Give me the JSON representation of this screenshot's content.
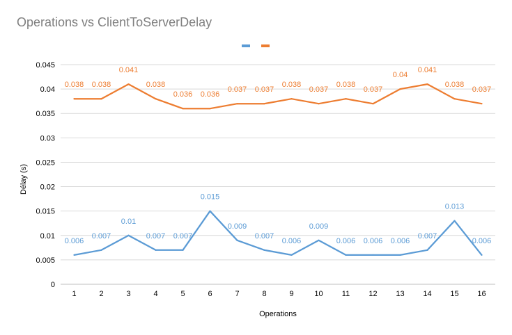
{
  "chart_data": {
    "type": "line",
    "title": "Operations vs ClientToServerDelay",
    "xlabel": "Operations",
    "ylabel": "Delay (s)",
    "ylabel_shown": "Délay (s)",
    "categories": [
      "1",
      "2",
      "3",
      "4",
      "5",
      "6",
      "7",
      "8",
      "9",
      "10",
      "11",
      "12",
      "13",
      "14",
      "15",
      "16"
    ],
    "ylim": [
      0,
      0.045
    ],
    "yticks": [
      "0",
      "0.005",
      "0.01",
      "0.015",
      "0.02",
      "0.025",
      "0.03",
      "0.035",
      "0.04",
      "0.045"
    ],
    "grid": true,
    "legend": "top-center",
    "series": [
      {
        "color": "#5b9bd5",
        "values": [
          0.006,
          0.007,
          0.01,
          0.007,
          0.007,
          0.015,
          0.009,
          0.007,
          0.006,
          0.009,
          0.006,
          0.006,
          0.006,
          0.007,
          0.013,
          0.006
        ],
        "labels": [
          "0.006",
          "0.007",
          "0.01",
          "0.007",
          "0.007",
          "0.015",
          "0.009",
          "0.007",
          "0.006",
          "0.009",
          "0.006",
          "0.006",
          "0.006",
          "0.007",
          "0.013",
          "0.006"
        ]
      },
      {
        "color": "#ed7d31",
        "values": [
          0.038,
          0.038,
          0.041,
          0.038,
          0.036,
          0.036,
          0.037,
          0.037,
          0.038,
          0.037,
          0.038,
          0.037,
          0.04,
          0.041,
          0.038,
          0.037
        ],
        "labels": [
          "0.038",
          "0.038",
          "0.041",
          "0.038",
          "0.036",
          "0.036",
          "0.037",
          "0.037",
          "0.038",
          "0.037",
          "0.038",
          "0.037",
          "0.04",
          "0.041",
          "0.038",
          "0.037"
        ]
      }
    ]
  }
}
